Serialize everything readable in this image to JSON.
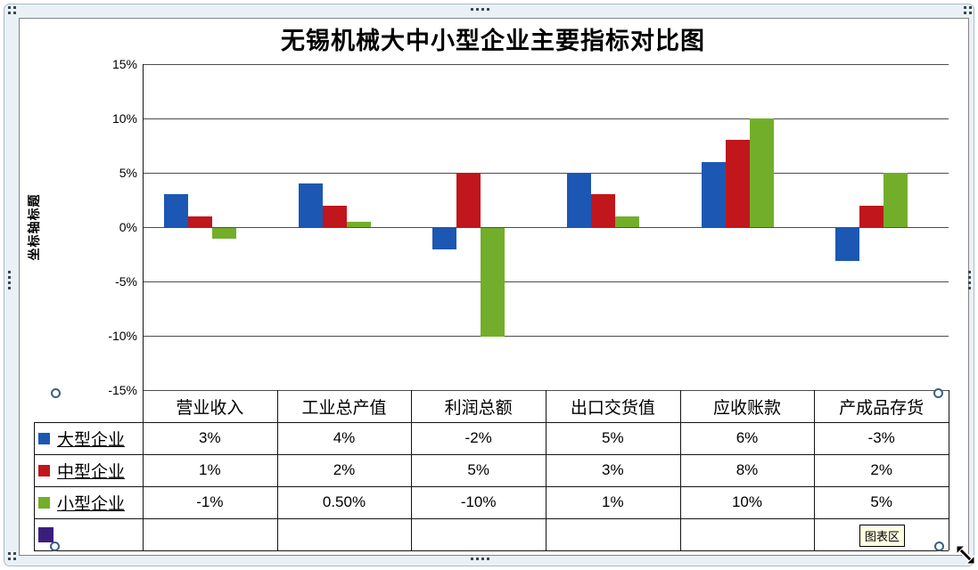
{
  "chart_data": {
    "type": "bar",
    "title": "无锡机械大中小型企业主要指标对比图",
    "ylabel": "坐标轴标题",
    "xlabel": "",
    "categories": [
      "营业收入",
      "工业总产值",
      "利润总额",
      "出口交货值",
      "应收账款",
      "产成品存货"
    ],
    "series": [
      {
        "name": "大型企业",
        "color": "#1c57b4",
        "values": [
          3,
          4,
          -2,
          5,
          6,
          -3
        ],
        "labels": [
          "3%",
          "4%",
          "-2%",
          "5%",
          "6%",
          "-3%"
        ]
      },
      {
        "name": "中型企业",
        "color": "#c0161c",
        "values": [
          1,
          2,
          5,
          3,
          8,
          2
        ],
        "labels": [
          "1%",
          "2%",
          "5%",
          "3%",
          "8%",
          "2%"
        ]
      },
      {
        "name": "小型企业",
        "color": "#73ae2a",
        "values": [
          -1,
          0.5,
          -10,
          1,
          10,
          5
        ],
        "labels": [
          "-1%",
          "0.50%",
          "-10%",
          "1%",
          "10%",
          "5%"
        ]
      },
      {
        "name": "",
        "color": "#3a1e7d",
        "values": [
          null,
          null,
          null,
          null,
          null,
          null
        ],
        "labels": [
          "",
          "",
          "",
          "",
          "",
          ""
        ]
      }
    ],
    "ylim": [
      -15,
      15
    ],
    "ytick_step": 5,
    "ytick_labels": [
      "15%",
      "10%",
      "5%",
      "0%",
      "-5%",
      "-10%",
      "-15%"
    ],
    "grid": true,
    "legend_position": "data-table-left"
  },
  "tooltip": {
    "label": "图表区"
  }
}
